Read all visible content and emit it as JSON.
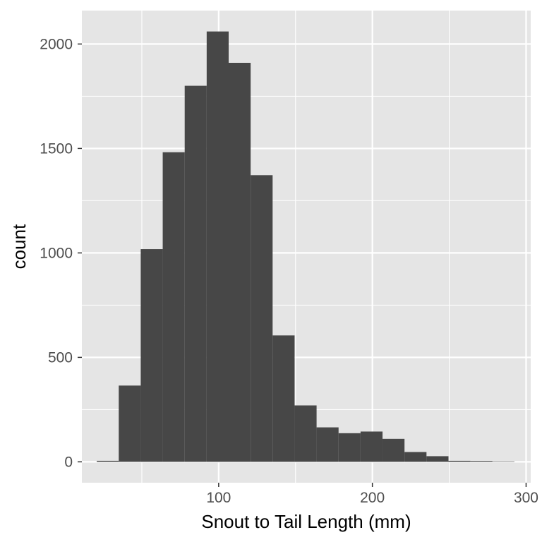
{
  "chart_data": {
    "type": "bar",
    "subtype": "histogram",
    "title": "",
    "xlabel": "Snout to Tail Length (mm)",
    "ylabel": "count",
    "xlim": [
      11,
      303
    ],
    "ylim": [
      -100,
      2160
    ],
    "x_ticks": [
      100,
      200,
      300
    ],
    "y_ticks": [
      0,
      500,
      1000,
      1500,
      2000
    ],
    "grid": true,
    "legend": "none",
    "bin_width": 14.3,
    "bins": [
      {
        "x0": 20.7,
        "x1": 35.0,
        "count": 5
      },
      {
        "x0": 35.0,
        "x1": 49.3,
        "count": 365
      },
      {
        "x0": 49.3,
        "x1": 63.6,
        "count": 1018
      },
      {
        "x0": 63.6,
        "x1": 77.9,
        "count": 1482
      },
      {
        "x0": 77.9,
        "x1": 92.2,
        "count": 1800
      },
      {
        "x0": 92.2,
        "x1": 106.5,
        "count": 2060
      },
      {
        "x0": 106.5,
        "x1": 120.8,
        "count": 1910
      },
      {
        "x0": 120.8,
        "x1": 135.1,
        "count": 1372
      },
      {
        "x0": 135.1,
        "x1": 149.4,
        "count": 605
      },
      {
        "x0": 149.4,
        "x1": 163.7,
        "count": 270
      },
      {
        "x0": 163.7,
        "x1": 178.0,
        "count": 165
      },
      {
        "x0": 178.0,
        "x1": 192.3,
        "count": 137
      },
      {
        "x0": 192.3,
        "x1": 206.6,
        "count": 145
      },
      {
        "x0": 206.6,
        "x1": 220.9,
        "count": 110
      },
      {
        "x0": 220.9,
        "x1": 235.2,
        "count": 47
      },
      {
        "x0": 235.2,
        "x1": 249.5,
        "count": 27
      },
      {
        "x0": 249.5,
        "x1": 263.8,
        "count": 5
      },
      {
        "x0": 263.8,
        "x1": 278.1,
        "count": 4
      },
      {
        "x0": 278.1,
        "x1": 292.4,
        "count": 2
      }
    ],
    "colors": {
      "panel_background": "#e5e5e5",
      "grid": "#ffffff",
      "bar_fill": "#474747",
      "tick_label": "#4d4d4d",
      "axis_title": "#000000",
      "tick_mark": "#333333"
    }
  }
}
